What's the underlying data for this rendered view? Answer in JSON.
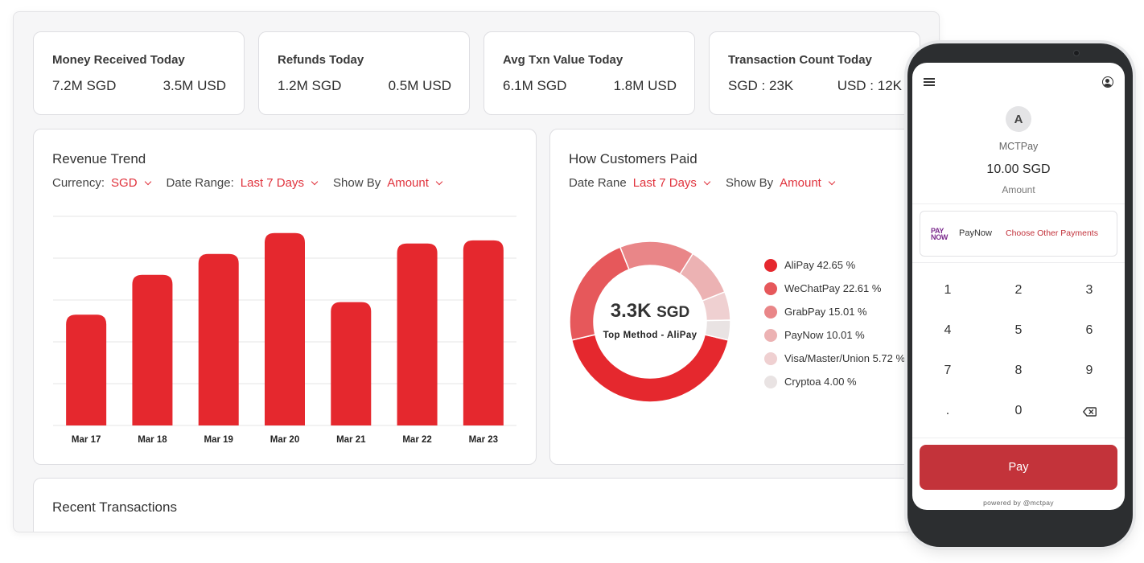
{
  "kpis": [
    {
      "title": "Money Received Today",
      "left": "7.2M SGD",
      "right": "3.5M USD"
    },
    {
      "title": "Refunds Today",
      "left": "1.2M SGD",
      "right": "0.5M USD"
    },
    {
      "title": "Avg Txn Value Today",
      "left": "6.1M SGD",
      "right": "1.8M USD"
    },
    {
      "title": "Transaction Count Today",
      "left": "SGD : 23K",
      "right": "USD : 12K"
    }
  ],
  "revenue": {
    "title": "Revenue Trend",
    "filters": [
      {
        "label": "Currency:",
        "value": "SGD"
      },
      {
        "label": "Date Range:",
        "value": "Last 7 Days"
      },
      {
        "label": "Show By",
        "value": "Amount"
      }
    ]
  },
  "payments": {
    "title": "How Customers Paid",
    "filters": [
      {
        "label": "Date Rane",
        "value": "Last 7 Days"
      },
      {
        "label": "Show By",
        "value": "Amount"
      }
    ],
    "center_value": "3.3K",
    "center_unit": "SGD",
    "center_label": "Top Method - AliPay"
  },
  "recent": {
    "title": "Recent Transactions"
  },
  "chart_data": [
    {
      "type": "bar",
      "title": "Revenue Trend",
      "categories": [
        "Mar 17",
        "Mar 18",
        "Mar 19",
        "Mar 20",
        "Mar 21",
        "Mar 22",
        "Mar 23"
      ],
      "values": [
        53,
        72,
        82,
        92,
        59,
        87,
        88.5
      ],
      "ylim": [
        0,
        100
      ],
      "grid": true,
      "color": "#e5282e"
    },
    {
      "type": "pie",
      "title": "How Customers Paid",
      "labels": [
        "AliPay 42.65 %",
        "WeChatPay 22.61 %",
        "GrabPay 15.01 %",
        "PayNow 10.01 %",
        "Visa/Master/Union 5.72 %",
        "Cryptoa 4.00 %"
      ],
      "values": [
        42.65,
        22.61,
        15.01,
        10.01,
        5.72,
        4.0
      ],
      "colors": [
        "#e5282e",
        "#e6585b",
        "#e98688",
        "#ecb2b3",
        "#efd0d1",
        "#e9e3e3"
      ],
      "legend": "right"
    }
  ],
  "phone": {
    "avatar": "A",
    "merchant": "MCTPay",
    "amount": "10.00 SGD",
    "amount_label": "Amount",
    "method_logo_top": "PAY",
    "method_logo_bottom": "NOW",
    "method": "PayNow",
    "other": "Choose Other Payments",
    "keys": [
      "1",
      "2",
      "3",
      "4",
      "5",
      "6",
      "7",
      "8",
      "9",
      ".",
      "0"
    ],
    "pay": "Pay",
    "powered": "powered by @mctpay"
  }
}
